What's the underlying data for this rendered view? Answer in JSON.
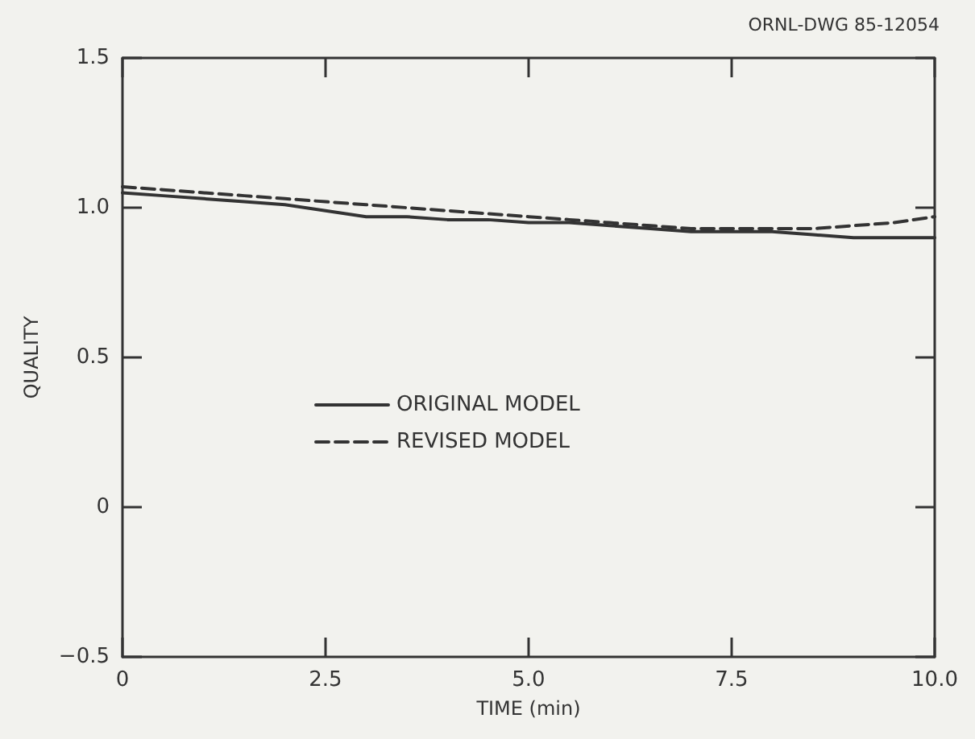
{
  "chart_data": {
    "type": "line",
    "xlabel": "TIME (min)",
    "ylabel": "QUALITY",
    "annotations": [
      "ORNL-DWG 85-12054"
    ],
    "x": [
      0,
      0.5,
      1,
      1.5,
      2,
      2.5,
      3,
      3.5,
      4,
      4.5,
      5,
      5.5,
      6,
      6.5,
      7,
      7.5,
      8,
      8.5,
      9,
      9.5,
      10
    ],
    "series": [
      {
        "name": "ORIGINAL MODEL",
        "color": "#333333",
        "line_style": "solid",
        "values": [
          1.05,
          1.04,
          1.03,
          1.02,
          1.01,
          0.99,
          0.97,
          0.97,
          0.96,
          0.96,
          0.95,
          0.95,
          0.94,
          0.93,
          0.92,
          0.92,
          0.92,
          0.91,
          0.9,
          0.9,
          0.9
        ]
      },
      {
        "name": "REVISED MODEL",
        "color": "#333333",
        "line_style": "dashed",
        "values": [
          1.07,
          1.06,
          1.05,
          1.04,
          1.03,
          1.02,
          1.01,
          1.0,
          0.99,
          0.98,
          0.97,
          0.96,
          0.95,
          0.94,
          0.93,
          0.93,
          0.93,
          0.93,
          0.94,
          0.95,
          0.97
        ]
      }
    ],
    "xlim": [
      0,
      10
    ],
    "xticks": [
      0,
      {
        "value": 2.5,
        "label": "2.5"
      },
      {
        "value": 5,
        "label": "5.0"
      },
      {
        "value": 7.5,
        "label": "7.5"
      },
      {
        "value": 10,
        "label": "10.0"
      }
    ],
    "ylim": [
      -0.5,
      1.5
    ],
    "yticks": [
      {
        "value": -0.5,
        "label": "−0.5"
      },
      0,
      {
        "value": 0.5,
        "label": "0.5"
      },
      {
        "value": 1,
        "label": "1.0"
      },
      {
        "value": 1.5,
        "label": "1.5"
      }
    ],
    "legend": "left",
    "marker": "none",
    "grid": false
  }
}
